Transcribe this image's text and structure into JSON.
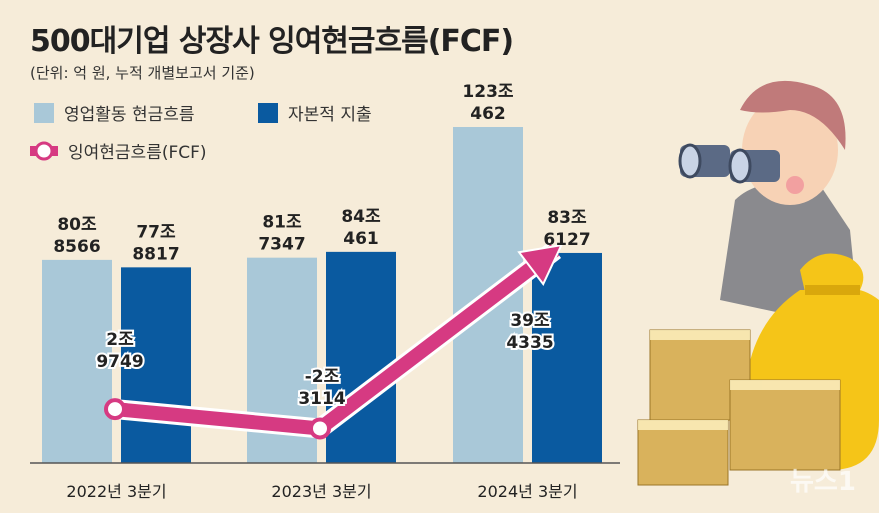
{
  "title": "500대기업 상장사 잉여현금흐름(FCF)",
  "subtitle": "(단위: 억 원, 누적 개별보고서 기준)",
  "watermark": "뉴스1",
  "colors": {
    "operating": "#a9c8d8",
    "capex": "#0a5aa0",
    "fcf": "#d63a82",
    "background": "#f6ecd9"
  },
  "chart_data": {
    "type": "bar",
    "title": "500대기업 상장사 잉여현금흐름(FCF)",
    "unit": "억 원",
    "categories": [
      "2022년 3분기",
      "2023년 3분기",
      "2024년 3분기"
    ],
    "series": [
      {
        "name": "영업활동 현금흐름",
        "type": "bar",
        "values": [
          808566,
          817347,
          1230462
        ],
        "labels": [
          [
            "80조",
            "8566"
          ],
          [
            "81조",
            "7347"
          ],
          [
            "123조",
            "462"
          ]
        ]
      },
      {
        "name": "자본적 지출",
        "type": "bar",
        "values": [
          778817,
          840461,
          836127
        ],
        "labels": [
          [
            "77조",
            "8817"
          ],
          [
            "84조",
            "461"
          ],
          [
            "83조",
            "6127"
          ]
        ]
      },
      {
        "name": "잉여현금흐름(FCF)",
        "type": "line",
        "values": [
          29749,
          -23114,
          394335
        ],
        "labels": [
          [
            "2조",
            "9749"
          ],
          [
            "-2조",
            "3114"
          ],
          [
            "39조",
            "4335"
          ]
        ]
      }
    ],
    "legend": "top-left"
  }
}
